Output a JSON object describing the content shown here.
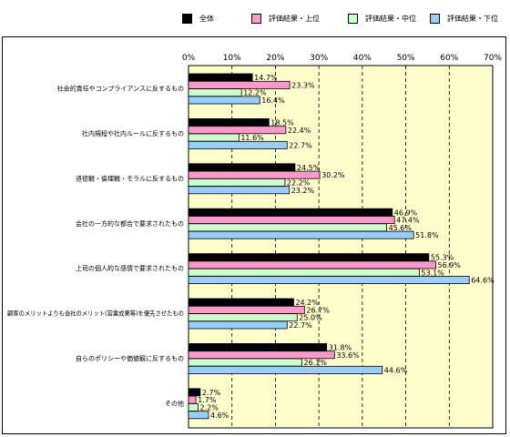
{
  "legend": [
    {
      "label": "全体",
      "color": "#000000"
    },
    {
      "label": "評価結果・上位",
      "color": "#ff99cc"
    },
    {
      "label": "評価結果・中位",
      "color": "#ccffcc"
    },
    {
      "label": "評価結果・下位",
      "color": "#99ccff"
    }
  ],
  "chart_data": {
    "type": "bar",
    "orientation": "horizontal",
    "title": "",
    "xlabel": "",
    "ylabel": "",
    "xlim": [
      0,
      70
    ],
    "ticks": [
      "0%",
      "10%",
      "20%",
      "30%",
      "40%",
      "50%",
      "60%",
      "70%"
    ],
    "tick_values": [
      0,
      10,
      20,
      30,
      40,
      50,
      60,
      70
    ],
    "grid": "vertical dashed",
    "legend_position": "top",
    "value_format": "{v}%",
    "categories": [
      "社会的責任やコンプライアンスに反するもの",
      "社内規程や社内ルールに反するもの",
      "道徳観・倫理観・モラルに反するもの",
      "会社の一方的な都合で要求されたもの",
      "上司の個人的な感情で要求されたもの",
      "顧客のメリットよりも会社のメリット(営業成果等)を優先させたもの",
      "自らのポリシーや価値観に反するもの",
      "その他"
    ],
    "series": [
      {
        "name": "全体",
        "color": "#000000",
        "values": [
          14.7,
          18.5,
          24.5,
          46.9,
          55.3,
          24.2,
          31.8,
          2.7
        ]
      },
      {
        "name": "評価結果・上位",
        "color": "#ff99cc",
        "values": [
          23.3,
          22.4,
          30.2,
          47.4,
          56.9,
          26.7,
          33.6,
          1.7
        ]
      },
      {
        "name": "評価結果・中位",
        "color": "#ccffcc",
        "values": [
          12.2,
          11.6,
          22.2,
          45.6,
          53.1,
          25.0,
          26.1,
          2.2
        ]
      },
      {
        "name": "評価結果・下位",
        "color": "#99ccff",
        "values": [
          16.4,
          22.7,
          23.2,
          51.8,
          64.6,
          22.7,
          44.6,
          4.6
        ]
      }
    ]
  }
}
